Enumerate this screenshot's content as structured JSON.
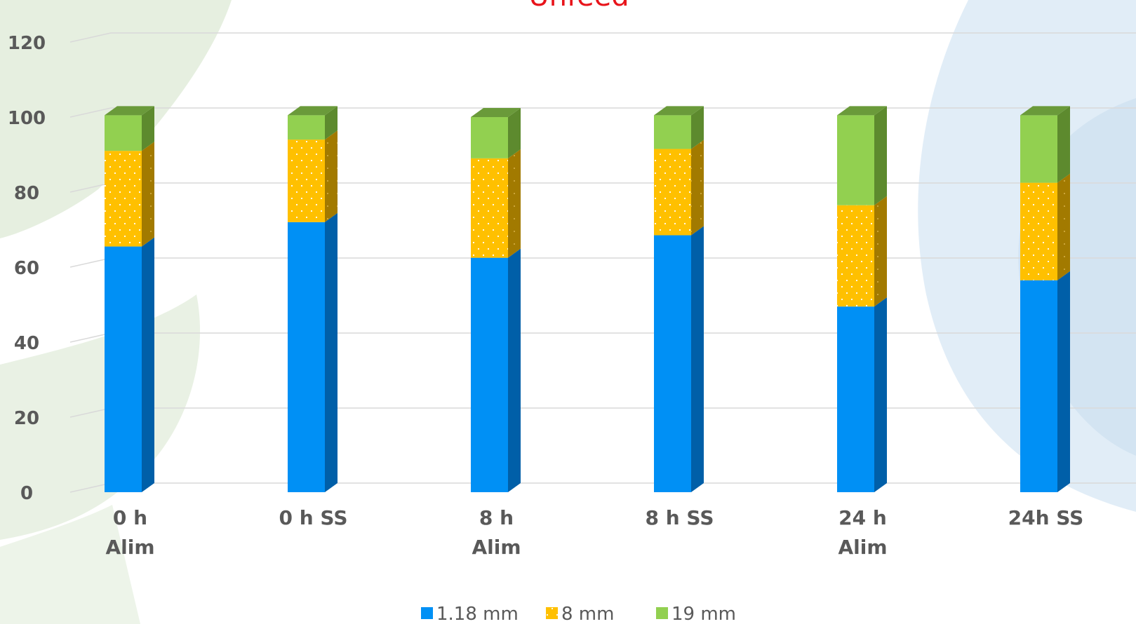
{
  "colors": {
    "s0": "#0090f5",
    "s0_side": "#005fa8",
    "s0_top": "#1a9ffa",
    "s1": "#ffc000",
    "s1_side": "#a27a00",
    "s1_top": "#d6a300",
    "s2": "#92d050",
    "s2_side": "#5d8a2e",
    "s2_top": "#6a9a3a",
    "title": "#e8141b"
  },
  "chart_data": {
    "type": "bar",
    "stacked": true,
    "three_d": true,
    "title": "Unfeed",
    "categories": [
      [
        "0 h",
        "Alim"
      ],
      [
        "0 h SS"
      ],
      [
        "8 h",
        "Alim"
      ],
      [
        "8 h SS"
      ],
      [
        "24 h",
        "Alim"
      ],
      [
        "24h SS"
      ]
    ],
    "series": [
      {
        "name": "1.18 mm",
        "values": [
          65.5,
          72,
          62.5,
          68.5,
          49.5,
          56.5
        ]
      },
      {
        "name": "8 mm",
        "values": [
          25.5,
          22,
          26.5,
          23,
          27,
          26
        ]
      },
      {
        "name": "19 mm",
        "values": [
          9.5,
          6.5,
          11,
          9,
          24,
          18
        ]
      }
    ],
    "ylim": [
      0,
      120
    ],
    "yticks": [
      0,
      20,
      40,
      60,
      80,
      100,
      120
    ],
    "grid": true,
    "legend_position": "bottom"
  }
}
